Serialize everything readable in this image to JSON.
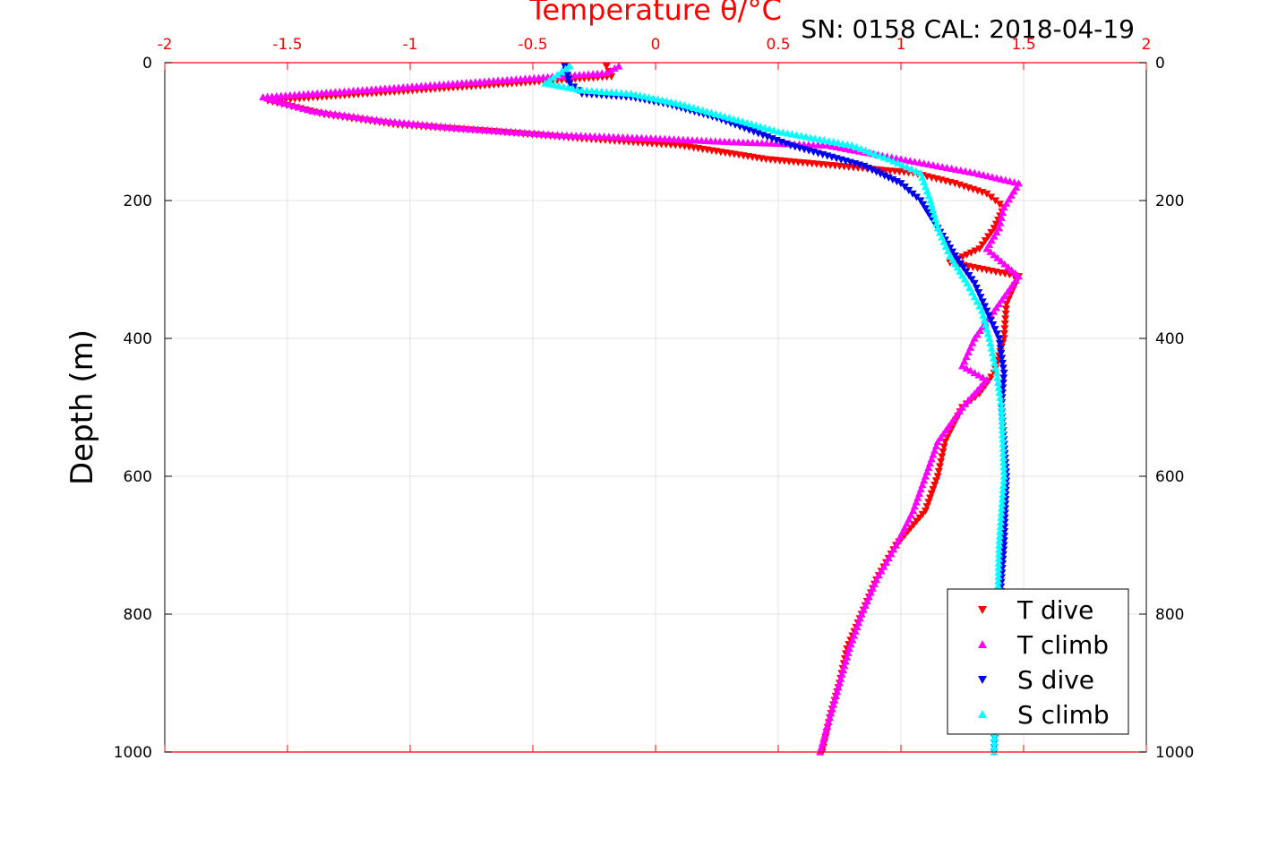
{
  "chart_data": {
    "type": "scatter",
    "title": "SN: 0158  CAL: 2018-04-19",
    "xlabel": "Temperature θ/°C",
    "ylabel": "Depth (m)",
    "xlim": [
      -2,
      2
    ],
    "ylim": [
      1000,
      0
    ],
    "x_ticks": [
      "-2",
      "-1.5",
      "-1",
      "-0.5",
      "0",
      "0.5",
      "1",
      "1.5",
      "2"
    ],
    "y_ticks": [
      "0",
      "200",
      "400",
      "600",
      "800",
      "1000"
    ],
    "grid": true,
    "legend_position": "bottom-right",
    "series": [
      {
        "name": "T dive",
        "marker": "triangle-down",
        "color": "#ff0000",
        "x": [
          -0.2,
          -0.18,
          -1.58,
          -1.35,
          -1.05,
          -0.65,
          -0.3,
          0.1,
          0.45,
          0.75,
          1.05,
          1.22,
          1.35,
          1.42,
          1.38,
          1.32,
          1.2,
          1.48,
          1.43,
          1.42,
          1.38,
          1.32,
          1.25,
          1.18,
          1.15,
          1.1,
          0.98,
          0.9,
          0.84,
          0.78,
          0.75,
          0.71,
          0.68
        ],
        "y": [
          5,
          20,
          55,
          75,
          90,
          100,
          110,
          120,
          140,
          150,
          160,
          175,
          190,
          210,
          240,
          270,
          290,
          310,
          350,
          400,
          450,
          480,
          500,
          550,
          600,
          650,
          700,
          750,
          800,
          850,
          900,
          950,
          1000
        ]
      },
      {
        "name": "T climb",
        "marker": "triangle-up",
        "color": "#ff00ff",
        "x": [
          -0.15,
          -0.2,
          -1.6,
          -1.4,
          -1.1,
          -0.8,
          -0.4,
          0.0,
          0.3,
          0.7,
          1.0,
          1.3,
          1.48,
          1.42,
          1.4,
          1.35,
          1.48,
          1.4,
          1.3,
          1.25,
          1.35,
          1.25,
          1.15,
          1.1,
          1.05,
          0.98,
          0.9,
          0.84,
          0.79,
          0.75,
          0.71,
          0.67
        ],
        "y": [
          5,
          15,
          50,
          70,
          85,
          95,
          105,
          110,
          115,
          120,
          140,
          160,
          175,
          210,
          240,
          270,
          310,
          350,
          400,
          440,
          460,
          500,
          550,
          600,
          650,
          700,
          750,
          800,
          850,
          900,
          950,
          1000
        ]
      },
      {
        "name": "S dive",
        "marker": "triangle-down",
        "color": "#0000ee",
        "x": [
          -0.37,
          -0.35,
          -0.3,
          -0.1,
          0.05,
          0.25,
          0.4,
          0.55,
          0.7,
          0.85,
          1.0,
          1.08,
          1.15,
          1.22,
          1.3,
          1.35,
          1.4,
          1.42,
          1.41,
          1.43,
          1.42,
          1.4,
          1.39,
          1.38
        ],
        "y": [
          5,
          30,
          45,
          50,
          60,
          80,
          100,
          120,
          135,
          150,
          175,
          200,
          240,
          280,
          320,
          360,
          400,
          450,
          500,
          600,
          700,
          800,
          900,
          1000
        ]
      },
      {
        "name": "S climb",
        "marker": "triangle-up",
        "color": "#00ffff",
        "x": [
          -0.35,
          -0.45,
          -0.3,
          -0.1,
          0.1,
          0.3,
          0.5,
          0.65,
          0.8,
          0.95,
          1.08,
          1.12,
          1.15,
          1.2,
          1.27,
          1.33,
          1.36,
          1.39,
          1.41,
          1.42,
          1.4,
          1.39,
          1.38
        ],
        "y": [
          5,
          30,
          40,
          45,
          60,
          80,
          100,
          110,
          120,
          140,
          160,
          200,
          240,
          280,
          320,
          360,
          400,
          450,
          500,
          600,
          700,
          850,
          1000
        ]
      }
    ]
  }
}
